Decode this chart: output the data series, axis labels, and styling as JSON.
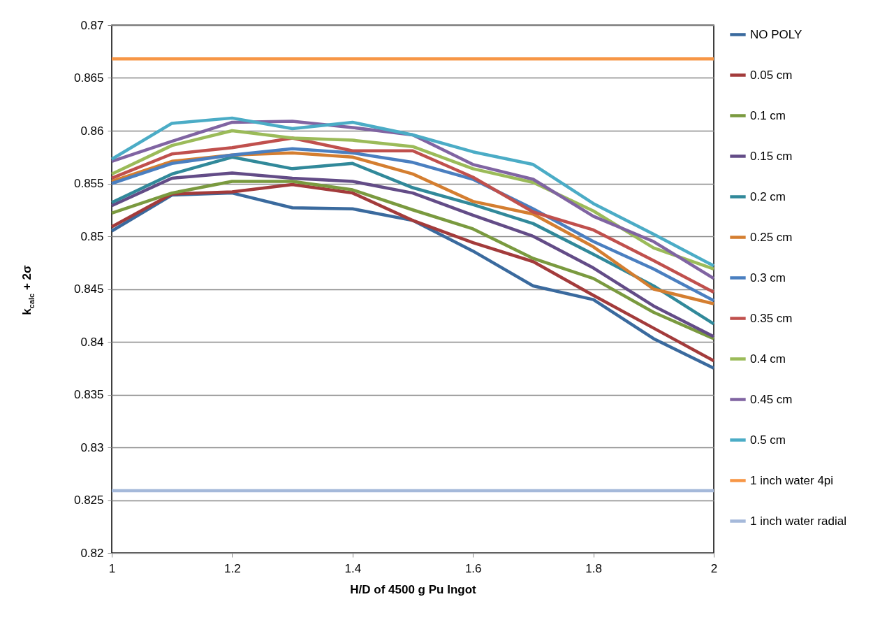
{
  "chart_data": {
    "type": "line",
    "xlabel": "H/D of 4500 g Pu Ingot",
    "ylabel": "k$_{calc}$ + 2σ",
    "x": [
      1,
      1.1,
      1.2,
      1.3,
      1.4,
      1.5,
      1.6,
      1.7,
      1.8,
      1.9,
      2
    ],
    "xlim": [
      1,
      2
    ],
    "xticks": [
      1,
      1.2,
      1.4,
      1.6,
      1.8,
      2
    ],
    "ylim": [
      0.82,
      0.87
    ],
    "yticks": [
      0.82,
      0.825,
      0.83,
      0.835,
      0.84,
      0.845,
      0.85,
      0.855,
      0.86,
      0.865,
      0.87
    ],
    "grid": "y",
    "legend": "right",
    "marker": "none",
    "line_style": "solid",
    "series": [
      {
        "name": "NO POLY",
        "color": "#3a6a9e",
        "values": [
          0.8505,
          0.8539,
          0.8541,
          0.8527,
          0.8526,
          0.8515,
          0.8486,
          0.8453,
          0.844,
          0.8403,
          0.8375
        ]
      },
      {
        "name": "0.05 cm",
        "color": "#a33b3b",
        "values": [
          0.8509,
          0.854,
          0.8542,
          0.8549,
          0.8541,
          0.8515,
          0.8494,
          0.8476,
          0.8444,
          0.8413,
          0.8382
        ]
      },
      {
        "name": "0.1 cm",
        "color": "#7a9a3f",
        "values": [
          0.8522,
          0.8541,
          0.8552,
          0.8552,
          0.8544,
          0.8525,
          0.8507,
          0.8479,
          0.846,
          0.8428,
          0.8403
        ]
      },
      {
        "name": "0.15 cm",
        "color": "#634c87",
        "values": [
          0.8529,
          0.8555,
          0.856,
          0.8555,
          0.8552,
          0.8541,
          0.852,
          0.85,
          0.847,
          0.8434,
          0.8405
        ]
      },
      {
        "name": "0.2 cm",
        "color": "#31899a",
        "values": [
          0.8532,
          0.8559,
          0.8575,
          0.8564,
          0.8569,
          0.8546,
          0.853,
          0.8512,
          0.8483,
          0.8453,
          0.8417
        ]
      },
      {
        "name": "0.25 cm",
        "color": "#d47e30",
        "values": [
          0.8552,
          0.8571,
          0.8577,
          0.8579,
          0.8575,
          0.8559,
          0.8533,
          0.8521,
          0.849,
          0.845,
          0.8436
        ]
      },
      {
        "name": "0.3 cm",
        "color": "#4a7fc0",
        "values": [
          0.855,
          0.8569,
          0.8577,
          0.8583,
          0.8579,
          0.857,
          0.8554,
          0.8526,
          0.8495,
          0.8469,
          0.8439
        ]
      },
      {
        "name": "0.35 cm",
        "color": "#c0504d",
        "values": [
          0.8555,
          0.8578,
          0.8584,
          0.8593,
          0.8581,
          0.8581,
          0.8556,
          0.8523,
          0.8506,
          0.8477,
          0.8447
        ]
      },
      {
        "name": "0.4 cm",
        "color": "#9bbb59",
        "values": [
          0.8559,
          0.8586,
          0.86,
          0.8593,
          0.8591,
          0.8585,
          0.8564,
          0.8551,
          0.8524,
          0.8489,
          0.8469
        ]
      },
      {
        "name": "0.45 cm",
        "color": "#8064a2",
        "values": [
          0.8571,
          0.859,
          0.8608,
          0.8609,
          0.8603,
          0.8596,
          0.8568,
          0.8554,
          0.8519,
          0.8495,
          0.846
        ]
      },
      {
        "name": "0.5 cm",
        "color": "#4bacc6",
        "values": [
          0.8573,
          0.8607,
          0.8612,
          0.8602,
          0.8608,
          0.8596,
          0.858,
          0.8568,
          0.8531,
          0.8502,
          0.8472
        ]
      },
      {
        "name": "1 inch water 4pi",
        "color": "#f79646",
        "values": [
          0.8668,
          0.8668,
          0.8668,
          0.8668,
          0.8668,
          0.8668,
          0.8668,
          0.8668,
          0.8668,
          0.8668,
          0.8668
        ]
      },
      {
        "name": "1 inch water radial",
        "color": "#a5b9da",
        "values": [
          0.8259,
          0.8259,
          0.8259,
          0.8259,
          0.8259,
          0.8259,
          0.8259,
          0.8259,
          0.8259,
          0.8259,
          0.8259
        ]
      }
    ]
  }
}
